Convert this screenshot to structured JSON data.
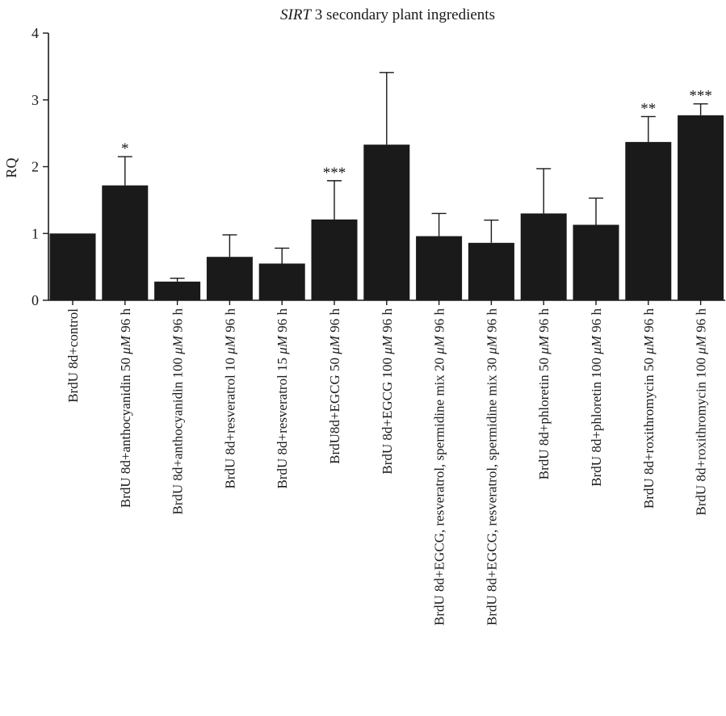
{
  "chart_data": {
    "type": "bar",
    "title_italic": "SIRT",
    "title_rest": " 3 secondary plant ingredients",
    "xlabel": "",
    "ylabel": "RQ",
    "ylim": [
      0,
      4
    ],
    "yticks": [
      "0",
      "1",
      "2",
      "3",
      "4"
    ],
    "grid": false,
    "bar_color": "#1a1a1a",
    "categories": [
      [
        "BrdU 8d+control"
      ],
      [
        "BrdU 8d+anthocyanidin 50 ",
        "μM",
        " 96 h"
      ],
      [
        "BrdU 8d+anthocyanidin 100 ",
        "μM",
        " 96 h"
      ],
      [
        "BrdU 8d+resveratrol 10 ",
        "μM",
        " 96 h"
      ],
      [
        "BrdU 8d+resveratrol 15 ",
        "μM",
        " 96 h"
      ],
      [
        "BrdU8d+EGCG 50 ",
        "μM",
        " 96 h"
      ],
      [
        "BrdU 8d+EGCG 100 ",
        "μM",
        " 96 h"
      ],
      [
        "BrdU 8d+EGCG, resveratrol, spermidine mix 20 ",
        "μM",
        " 96 h"
      ],
      [
        "BrdU 8d+EGCG, resveratrol, spermidine mix 30 ",
        "μM",
        " 96 h"
      ],
      [
        "BrdU 8d+phloretin 50 ",
        "μM",
        " 96 h"
      ],
      [
        "BrdU 8d+phloretin 100 ",
        "μM",
        " 96 h"
      ],
      [
        "BrdU 8d+roxithromycin 50 ",
        "μM",
        " 96 h"
      ],
      [
        "BrdU 8d+roxithromycin 100 ",
        "μM",
        " 96 h"
      ]
    ],
    "values": [
      1.0,
      1.72,
      0.28,
      0.65,
      0.55,
      1.21,
      2.33,
      0.96,
      0.86,
      1.3,
      1.13,
      2.37,
      2.77
    ],
    "errors": [
      0,
      0.43,
      0.05,
      0.33,
      0.23,
      0.58,
      1.08,
      0.34,
      0.34,
      0.67,
      0.4,
      0.38,
      0.17
    ],
    "significance": [
      "",
      "*",
      "",
      "",
      "",
      "***",
      "",
      "",
      "",
      "",
      "",
      "**",
      "***"
    ]
  }
}
